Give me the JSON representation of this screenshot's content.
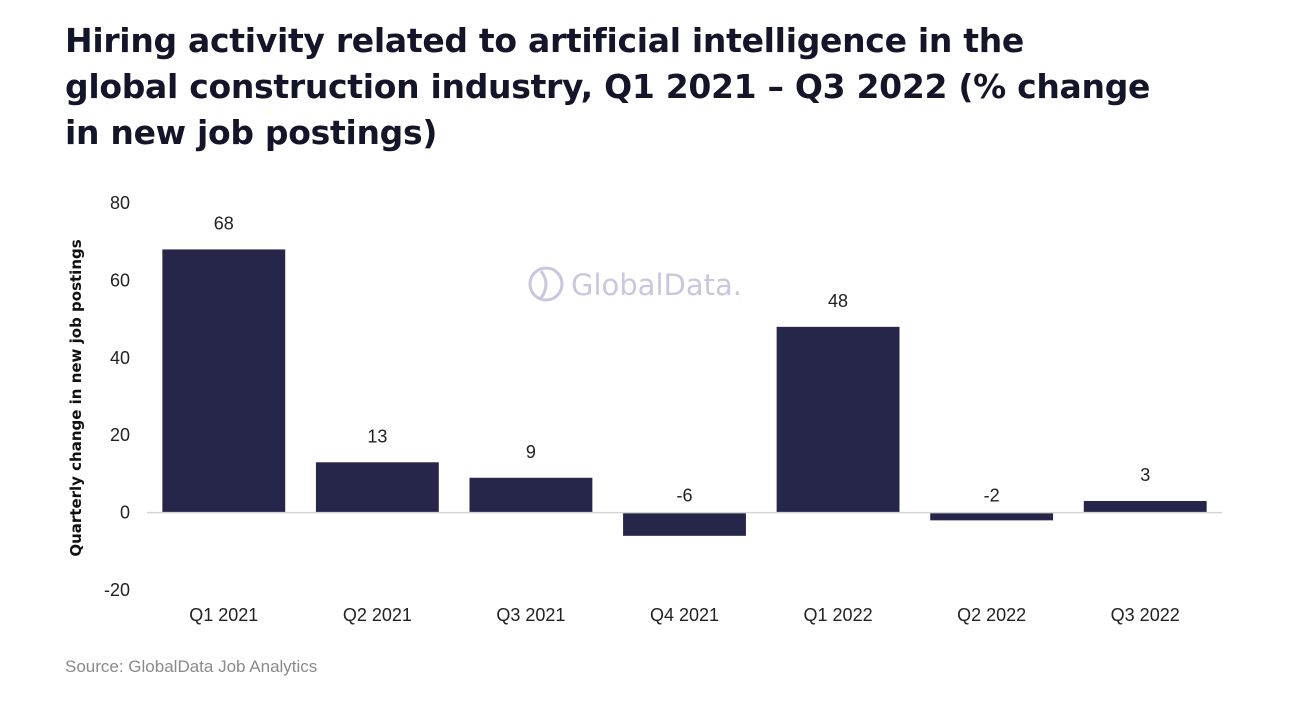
{
  "chart_data": {
    "type": "bar",
    "title_lines": [
      "Hiring activity related to artificial intelligence in the",
      "global construction industry, Q1 2021 – Q3 2022 (% change",
      "in new job postings)"
    ],
    "xlabel": "",
    "ylabel": "Quarterly change in new job postings",
    "ylim": [
      -20,
      80
    ],
    "yticks": [
      -20,
      0,
      20,
      40,
      60,
      80
    ],
    "categories": [
      "Q1 2021",
      "Q2 2021",
      "Q3 2021",
      "Q4 2021",
      "Q1 2022",
      "Q2 2022",
      "Q3 2022"
    ],
    "values": [
      68,
      13,
      9,
      -6,
      48,
      -2,
      3
    ],
    "grid": false,
    "legend": "none",
    "bar_color": "#26264a",
    "watermark": "GlobalData.",
    "source": "Source: GlobalData Job Analytics"
  }
}
